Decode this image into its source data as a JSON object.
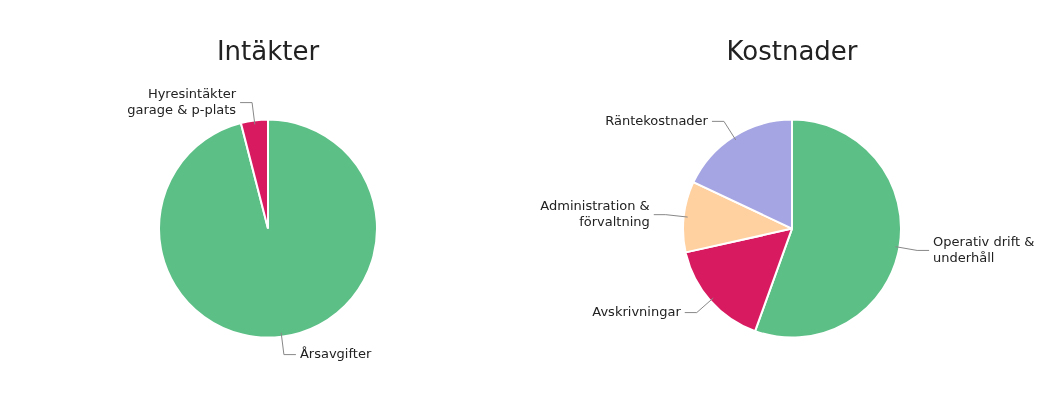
{
  "chart_data": [
    {
      "type": "pie",
      "title": "Intäkter",
      "categories": [
        "Årsavgifter",
        "Hyresintäkter garage & p-plats"
      ],
      "values": [
        96,
        4
      ],
      "colors": [
        "#5cbf86",
        "#d81b60"
      ],
      "legend": false
    },
    {
      "type": "pie",
      "title": "Kostnader",
      "categories": [
        "Operativ drift & underhåll",
        "Avskrivningar",
        "Administration & förvaltning",
        "Räntekostnader"
      ],
      "values": [
        55.5,
        16,
        10.5,
        18
      ],
      "colors": [
        "#5cbf86",
        "#d81b60",
        "#ffd0a0",
        "#a5a5e3"
      ],
      "legend": false
    }
  ]
}
